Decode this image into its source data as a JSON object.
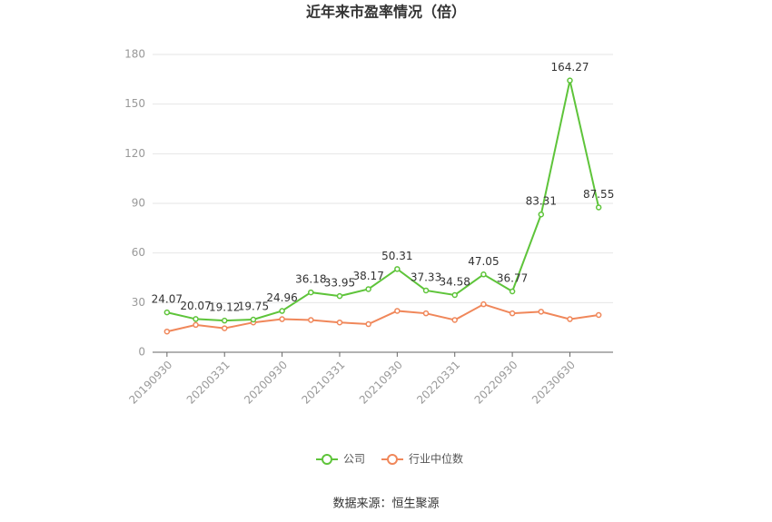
{
  "chart_data": {
    "type": "line",
    "title": "近年来市盈率情况（倍）",
    "categories": [
      "20190930",
      null,
      "20200331",
      null,
      "20200930",
      null,
      "20210331",
      null,
      "20210930",
      null,
      "20220331",
      null,
      "20220930",
      null,
      "20230630",
      null
    ],
    "series": [
      {
        "name": "公司",
        "color": "#5ec43a",
        "values": [
          24.07,
          20.07,
          19.12,
          19.75,
          24.96,
          36.18,
          33.95,
          38.17,
          50.31,
          37.33,
          34.58,
          47.05,
          36.77,
          83.31,
          164.27,
          87.55
        ]
      },
      {
        "name": "行业中位数",
        "color": "#f0875a",
        "values": [
          12.5,
          16.5,
          14.5,
          18,
          20,
          19.5,
          18,
          17,
          25,
          23.5,
          19.5,
          29,
          23.5,
          24.5,
          20,
          22.5
        ]
      }
    ],
    "ylim": [
      0,
      180
    ],
    "yticks": [
      0,
      30,
      60,
      90,
      120,
      150,
      180
    ],
    "grid": true,
    "legend": "bottom",
    "source": "数据来源：恒生聚源"
  }
}
